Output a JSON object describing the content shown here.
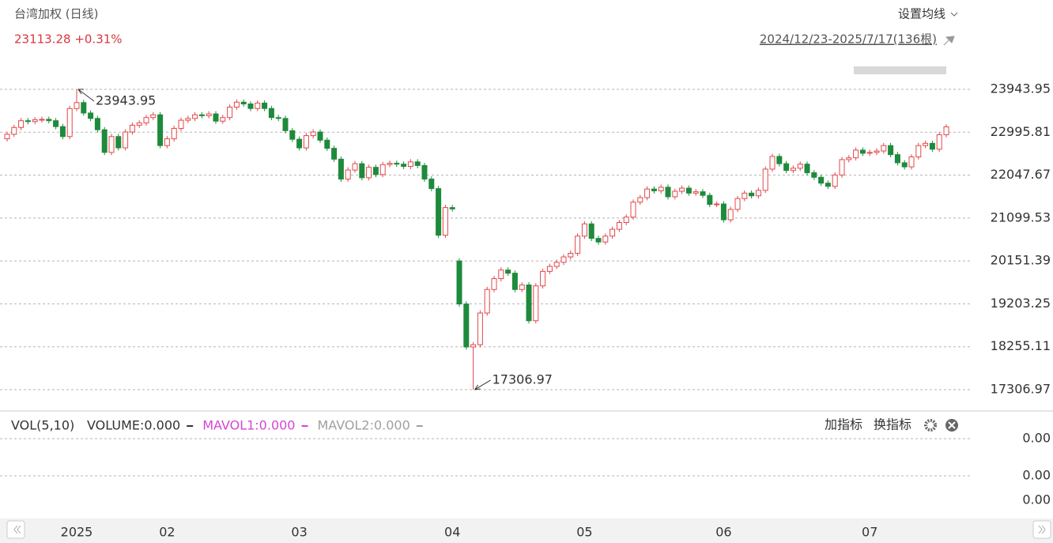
{
  "chart_data": {
    "type": "candlestick",
    "title": "台湾加权 (日线)",
    "quote": "23113.28 +0.31%",
    "ma_setting": "设置均线",
    "range_label": "2024/12/23-2025/7/17(136根)",
    "annotations": [
      {
        "text": "23943.95",
        "index": 10,
        "value": 23943.95
      },
      {
        "text": "17306.97",
        "index": 67,
        "value": 17306.97
      }
    ],
    "categories": [
      null,
      null,
      null,
      null,
      null,
      null,
      null,
      null,
      null,
      null,
      "2025",
      null,
      null,
      null,
      null,
      null,
      null,
      null,
      null,
      null,
      null,
      null,
      null,
      "02",
      null,
      null,
      null,
      null,
      null,
      null,
      null,
      null,
      null,
      null,
      null,
      null,
      null,
      null,
      null,
      null,
      null,
      null,
      "03",
      null,
      null,
      null,
      null,
      null,
      null,
      null,
      null,
      null,
      null,
      null,
      null,
      null,
      null,
      null,
      null,
      null,
      null,
      null,
      null,
      null,
      "04",
      null,
      null,
      null,
      null,
      null,
      null,
      null,
      null,
      null,
      null,
      null,
      null,
      null,
      null,
      null,
      null,
      null,
      null,
      "05",
      null,
      null,
      null,
      null,
      null,
      null,
      null,
      null,
      null,
      null,
      null,
      null,
      null,
      null,
      null,
      null,
      null,
      null,
      null,
      "06",
      null,
      null,
      null,
      null,
      null,
      null,
      null,
      null,
      null,
      null,
      null,
      null,
      null,
      null,
      null,
      null,
      null,
      null,
      null,
      null,
      "07",
      null,
      null,
      null,
      null,
      null,
      null,
      null,
      null,
      null,
      null,
      null
    ],
    "up_color": "#e3474b",
    "down_color": "#1e8a3c",
    "open": [
      22850,
      22950,
      23100,
      23250,
      23230,
      23270,
      23280,
      23250,
      23120,
      22900,
      23520,
      23650,
      23420,
      23300,
      23050,
      22550,
      22900,
      22650,
      23000,
      23150,
      23200,
      23320,
      23380,
      22700,
      22850,
      23080,
      23260,
      23300,
      23380,
      23360,
      23400,
      23240,
      23320,
      23550,
      23660,
      23620,
      23520,
      23640,
      23520,
      23320,
      23300,
      23030,
      22840,
      22650,
      22920,
      23000,
      22820,
      22640,
      22400,
      21960,
      22160,
      22300,
      21990,
      22220,
      22060,
      22280,
      22310,
      22290,
      22240,
      22340,
      22260,
      21960,
      21750,
      20720,
      21330,
      20150,
      19200,
      18250,
      18300,
      19000,
      19520,
      19760,
      19950,
      19880,
      19520,
      19620,
      18830,
      19600,
      19920,
      20030,
      20120,
      20240,
      20320,
      20700,
      20970,
      20650,
      20570,
      20700,
      20850,
      21000,
      21120,
      21450,
      21550,
      21740,
      21700,
      21780,
      21570,
      21690,
      21760,
      21650,
      21680,
      21600,
      21400,
      21410,
      21060,
      21290,
      21530,
      21650,
      21590,
      21710,
      22180,
      22460,
      22300,
      22150,
      22200,
      22290,
      22100,
      22000,
      21870,
      21800,
      22050,
      22390,
      22430,
      22600,
      22530,
      22550,
      22580,
      22700,
      22500,
      22320,
      22230,
      22450,
      22700,
      22750,
      22620,
      22940
    ],
    "high": [
      23010,
      23160,
      23310,
      23310,
      23330,
      23340,
      23340,
      23310,
      23180,
      23580,
      23943.95,
      23710,
      23480,
      23360,
      23110,
      22960,
      22960,
      23060,
      23210,
      23260,
      23380,
      23440,
      23440,
      22910,
      23140,
      23320,
      23360,
      23440,
      23440,
      23460,
      23460,
      23380,
      23610,
      23720,
      23720,
      23680,
      23700,
      23700,
      23580,
      23380,
      23360,
      23090,
      22900,
      22980,
      23060,
      23060,
      22880,
      22700,
      22460,
      22220,
      22360,
      22360,
      22280,
      22280,
      22340,
      22370,
      22370,
      22350,
      22400,
      22400,
      22320,
      22020,
      21810,
      21390,
      21390,
      20210,
      19260,
      18360,
      19060,
      19580,
      19820,
      20010,
      20010,
      19940,
      19680,
      19680,
      19660,
      19980,
      20090,
      20180,
      20300,
      20380,
      20760,
      21030,
      21030,
      20710,
      20760,
      20910,
      21060,
      21180,
      21510,
      21610,
      21800,
      21800,
      21840,
      21840,
      21750,
      21820,
      21820,
      21740,
      21740,
      21660,
      21470,
      21470,
      21350,
      21590,
      21710,
      21710,
      21770,
      22240,
      22520,
      22520,
      22360,
      22260,
      22350,
      22350,
      22160,
      22060,
      21930,
      22110,
      22450,
      22490,
      22660,
      22660,
      22610,
      22640,
      22760,
      22760,
      22560,
      22380,
      22510,
      22760,
      22810,
      22810,
      23000,
      23170
    ],
    "low": [
      22790,
      22890,
      23040,
      23170,
      23170,
      23210,
      23190,
      23060,
      22840,
      22840,
      23460,
      23360,
      23240,
      22990,
      22490,
      22490,
      22590,
      22590,
      22940,
      23090,
      23140,
      23260,
      22640,
      22640,
      22790,
      23020,
      23200,
      23240,
      23300,
      23300,
      23180,
      23180,
      23260,
      23490,
      23560,
      23460,
      23460,
      23460,
      23260,
      23240,
      22970,
      22780,
      22590,
      22590,
      22860,
      22760,
      22580,
      22340,
      21900,
      21900,
      22100,
      21930,
      21930,
      22000,
      22000,
      22220,
      22230,
      22180,
      22180,
      22200,
      21900,
      21690,
      20660,
      20660,
      21240,
      19140,
      18190,
      17306.97,
      18240,
      18940,
      19460,
      19700,
      19820,
      19460,
      19460,
      18770,
      18770,
      19540,
      19860,
      19970,
      20060,
      20180,
      20260,
      20640,
      20590,
      20510,
      20510,
      20640,
      20790,
      20940,
      21060,
      21390,
      21490,
      21640,
      21640,
      21510,
      21510,
      21630,
      21590,
      21590,
      21540,
      21340,
      21340,
      21000,
      21000,
      21230,
      21470,
      21530,
      21530,
      21650,
      22120,
      22240,
      22090,
      22090,
      22140,
      22040,
      21940,
      21810,
      21740,
      21740,
      21990,
      22330,
      22370,
      22470,
      22470,
      22490,
      22520,
      22440,
      22260,
      22170,
      22170,
      22390,
      22640,
      22560,
      22560,
      22880
    ],
    "close": [
      22950,
      23100,
      23250,
      23230,
      23270,
      23280,
      23250,
      23120,
      22900,
      23520,
      23650,
      23420,
      23300,
      23050,
      22550,
      22900,
      22650,
      23000,
      23150,
      23200,
      23320,
      23380,
      22700,
      22850,
      23080,
      23260,
      23300,
      23380,
      23360,
      23400,
      23240,
      23320,
      23550,
      23660,
      23620,
      23520,
      23640,
      23520,
      23320,
      23300,
      23030,
      22840,
      22650,
      22920,
      23000,
      22820,
      22640,
      22400,
      21960,
      22160,
      22300,
      21990,
      22220,
      22060,
      22280,
      22310,
      22290,
      22240,
      22340,
      22260,
      21960,
      21750,
      20720,
      21330,
      21300,
      19200,
      18250,
      18300,
      19000,
      19520,
      19760,
      19950,
      19880,
      19520,
      19620,
      18830,
      19600,
      19920,
      20030,
      20120,
      20240,
      20320,
      20700,
      20970,
      20650,
      20570,
      20700,
      20850,
      21000,
      21120,
      21450,
      21550,
      21740,
      21700,
      21780,
      21570,
      21690,
      21760,
      21650,
      21680,
      21600,
      21400,
      21410,
      21060,
      21290,
      21530,
      21650,
      21590,
      21710,
      22180,
      22460,
      22300,
      22150,
      22200,
      22290,
      22100,
      22000,
      21870,
      21800,
      22050,
      22390,
      22430,
      22600,
      22530,
      22550,
      22580,
      22700,
      22500,
      22320,
      22230,
      22450,
      22700,
      22750,
      22620,
      22940,
      23113.28
    ],
    "ylim": [
      16835,
      25917
    ],
    "yticks": [
      17306.97,
      18255.11,
      19203.25,
      20151.39,
      21099.53,
      22047.67,
      22995.81,
      23943.95
    ],
    "grid": true
  },
  "indicator_panel": {
    "name": "VOL(5,10)",
    "items": [
      {
        "text": "VOLUME:0.000",
        "color": "#333333"
      },
      {
        "text": "MAVOL1:0.000",
        "color": "#d645d6"
      },
      {
        "text": "MAVOL2:0.000",
        "color": "#a0a0a0"
      }
    ],
    "buttons": [
      "加指标",
      "换指标"
    ],
    "axis_labels": [
      "0.00",
      "0.00",
      "0.00"
    ]
  }
}
